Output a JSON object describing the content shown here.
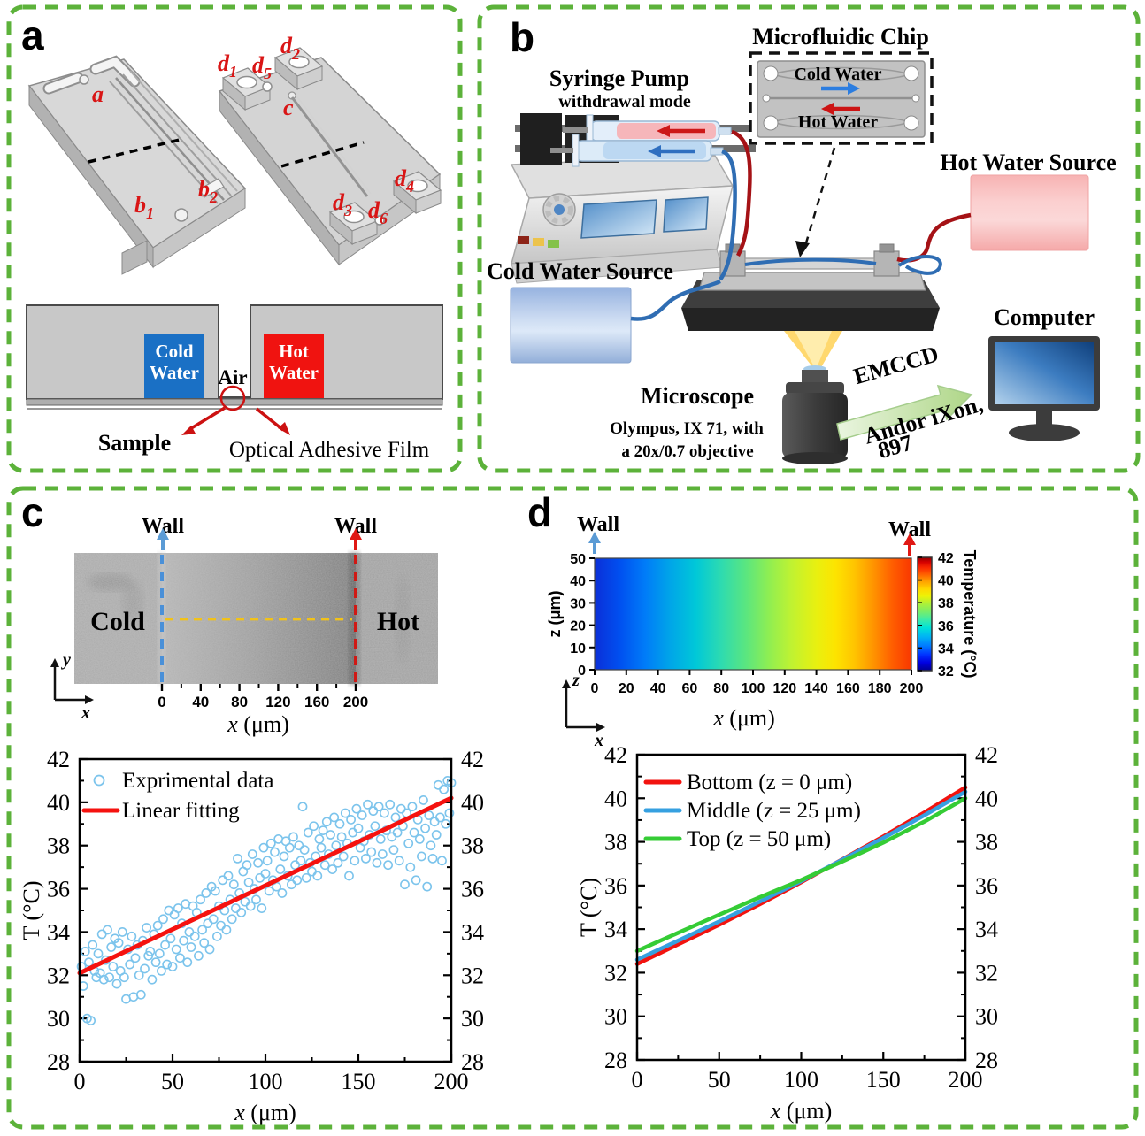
{
  "colors": {
    "green_border": "#5cb23a",
    "cold_blue": "#1a70c5",
    "hot_red": "#f01310",
    "label_red": "#d91515",
    "wall_blue": "#5b9bd5",
    "wall_red": "#e01814",
    "yellow_dash": "#f2c218",
    "scatter_marker": "#7cc4ec",
    "fit_line": "#f5120f",
    "tube_red": "#a51216",
    "tube_blue": "#2f6db3"
  },
  "panels": {
    "a": {
      "letter": "a",
      "chip_labels": [
        {
          "t": "a",
          "s": ""
        },
        {
          "t": "b",
          "s": "1"
        },
        {
          "t": "b",
          "s": "2"
        },
        {
          "t": "d",
          "s": "1"
        },
        {
          "t": "d",
          "s": "5"
        },
        {
          "t": "d",
          "s": "2"
        },
        {
          "t": "c",
          "s": ""
        },
        {
          "t": "d",
          "s": "3"
        },
        {
          "t": "d",
          "s": "6"
        },
        {
          "t": "d",
          "s": "4"
        }
      ],
      "cross_section": {
        "cold_line1": "Cold",
        "cold_line2": "Water",
        "hot_line1": "Hot",
        "hot_line2": "Water",
        "air": "Air",
        "sample": "Sample",
        "film": "Optical Adhesive Film"
      }
    },
    "b": {
      "letter": "b",
      "syringe_pump_title": "Syringe Pump",
      "syringe_pump_sub": "withdrawal mode",
      "chip_title": "Microfluidic Chip",
      "chip_cold": "Cold Water",
      "chip_hot": "Hot Water",
      "hot_source": "Hot Water Source",
      "cold_source": "Cold Water Source",
      "microscope_title": "Microscope",
      "microscope_line1": "Olympus, IX 71, with",
      "microscope_line2": "a 20x/0.7 objective",
      "emccd": "EMCCD",
      "emccd_line1": "Andor iXon,",
      "emccd_line2": "897",
      "computer": "Computer"
    },
    "c": {
      "letter": "c",
      "wall_left": "Wall",
      "wall_right": "Wall",
      "cold": "Cold",
      "hot": "Hot",
      "img_xticks": [
        0,
        40,
        80,
        120,
        160,
        200
      ],
      "img_xminor_step": 20,
      "img_xlabel": "x (μm)",
      "axis_icon": {
        "x": "x",
        "y": "y"
      }
    },
    "d": {
      "letter": "d",
      "wall_left": "Wall",
      "wall_right": "Wall",
      "axis_icon": {
        "x": "x",
        "z": "z"
      }
    }
  },
  "chart_data": [
    {
      "id": "c-scatter",
      "type": "scatter",
      "xlabel": "x (μm)",
      "ylabel": "T (°C)",
      "xlim": [
        0,
        200
      ],
      "ylim": [
        28,
        42
      ],
      "xticks": [
        0,
        50,
        100,
        150,
        200
      ],
      "xminor": 25,
      "yticks": [
        28,
        30,
        32,
        34,
        36,
        38,
        40,
        42
      ],
      "yminor": 1,
      "legend": [
        {
          "label": "Exprimental data",
          "kind": "marker",
          "color": "#7cc4ec"
        },
        {
          "label": "Linear fitting",
          "kind": "line",
          "color": "#f5120f"
        }
      ],
      "marker_color": "#7cc4ec",
      "fit": {
        "x0": 0,
        "y0": 32.1,
        "x1": 200,
        "y1": 40.2,
        "color": "#f5120f"
      },
      "points": [
        [
          1,
          32.4
        ],
        [
          2,
          31.5
        ],
        [
          3,
          33.1
        ],
        [
          4,
          30.0
        ],
        [
          5,
          32.6
        ],
        [
          6,
          29.9
        ],
        [
          7,
          33.4
        ],
        [
          8,
          32.2
        ],
        [
          9,
          31.9
        ],
        [
          10,
          33.0
        ],
        [
          11,
          32.1
        ],
        [
          12,
          33.9
        ],
        [
          13,
          31.8
        ],
        [
          14,
          32.7
        ],
        [
          15,
          34.1
        ],
        [
          16,
          31.9
        ],
        [
          17,
          33.3
        ],
        [
          18,
          32.4
        ],
        [
          19,
          33.7
        ],
        [
          20,
          31.6
        ],
        [
          21,
          33.5
        ],
        [
          22,
          32.2
        ],
        [
          23,
          34.0
        ],
        [
          24,
          31.9
        ],
        [
          25,
          30.9
        ],
        [
          26,
          33.2
        ],
        [
          27,
          32.5
        ],
        [
          28,
          33.8
        ],
        [
          29,
          31.0
        ],
        [
          30,
          32.8
        ],
        [
          31,
          33.4
        ],
        [
          32,
          32.0
        ],
        [
          33,
          31.1
        ],
        [
          34,
          33.6
        ],
        [
          35,
          32.3
        ],
        [
          36,
          34.2
        ],
        [
          37,
          32.9
        ],
        [
          38,
          33.1
        ],
        [
          39,
          31.8
        ],
        [
          40,
          33.9
        ],
        [
          41,
          32.6
        ],
        [
          42,
          34.3
        ],
        [
          43,
          33.0
        ],
        [
          44,
          32.2
        ],
        [
          45,
          34.6
        ],
        [
          46,
          33.4
        ],
        [
          47,
          32.5
        ],
        [
          48,
          35.0
        ],
        [
          49,
          33.7
        ],
        [
          50,
          32.4
        ],
        [
          51,
          34.8
        ],
        [
          52,
          33.2
        ],
        [
          53,
          35.1
        ],
        [
          54,
          32.8
        ],
        [
          55,
          34.4
        ],
        [
          56,
          33.6
        ],
        [
          57,
          35.3
        ],
        [
          58,
          32.6
        ],
        [
          59,
          34.0
        ],
        [
          60,
          33.3
        ],
        [
          61,
          35.2
        ],
        [
          62,
          33.8
        ],
        [
          63,
          34.9
        ],
        [
          64,
          32.9
        ],
        [
          65,
          35.5
        ],
        [
          66,
          34.1
        ],
        [
          67,
          33.5
        ],
        [
          68,
          35.8
        ],
        [
          69,
          34.4
        ],
        [
          70,
          33.2
        ],
        [
          71,
          36.1
        ],
        [
          72,
          34.6
        ],
        [
          73,
          35.9
        ],
        [
          74,
          33.8
        ],
        [
          75,
          35.2
        ],
        [
          76,
          34.3
        ],
        [
          77,
          36.4
        ],
        [
          78,
          35.0
        ],
        [
          79,
          34.1
        ],
        [
          80,
          36.6
        ],
        [
          81,
          35.5
        ],
        [
          82,
          34.6
        ],
        [
          83,
          36.2
        ],
        [
          84,
          35.1
        ],
        [
          85,
          37.4
        ],
        [
          86,
          35.8
        ],
        [
          87,
          34.9
        ],
        [
          88,
          36.8
        ],
        [
          89,
          35.4
        ],
        [
          90,
          37.1
        ],
        [
          91,
          36.3
        ],
        [
          92,
          35.2
        ],
        [
          93,
          37.6
        ],
        [
          94,
          36.0
        ],
        [
          95,
          35.5
        ],
        [
          96,
          37.2
        ],
        [
          97,
          36.5
        ],
        [
          98,
          35.1
        ],
        [
          99,
          37.9
        ],
        [
          100,
          36.7
        ],
        [
          101,
          37.3
        ],
        [
          102,
          35.9
        ],
        [
          103,
          38.1
        ],
        [
          104,
          36.4
        ],
        [
          105,
          37.7
        ],
        [
          106,
          36.1
        ],
        [
          107,
          38.3
        ],
        [
          108,
          36.9
        ],
        [
          109,
          35.8
        ],
        [
          110,
          37.5
        ],
        [
          111,
          38.2
        ],
        [
          112,
          36.6
        ],
        [
          113,
          37.9
        ],
        [
          114,
          36.2
        ],
        [
          115,
          38.4
        ],
        [
          116,
          37.1
        ],
        [
          117,
          36.4
        ],
        [
          118,
          38.0
        ],
        [
          119,
          37.3
        ],
        [
          120,
          39.8
        ],
        [
          121,
          37.8
        ],
        [
          122,
          36.5
        ],
        [
          123,
          38.6
        ],
        [
          124,
          37.2
        ],
        [
          125,
          36.8
        ],
        [
          126,
          38.9
        ],
        [
          127,
          37.5
        ],
        [
          128,
          36.6
        ],
        [
          129,
          38.3
        ],
        [
          130,
          37.9
        ],
        [
          131,
          38.7
        ],
        [
          132,
          37.1
        ],
        [
          133,
          39.1
        ],
        [
          134,
          37.6
        ],
        [
          135,
          38.5
        ],
        [
          136,
          36.9
        ],
        [
          137,
          39.3
        ],
        [
          138,
          38.0
        ],
        [
          139,
          37.2
        ],
        [
          140,
          39.0
        ],
        [
          141,
          38.4
        ],
        [
          142,
          37.5
        ],
        [
          143,
          39.5
        ],
        [
          144,
          38.1
        ],
        [
          145,
          36.6
        ],
        [
          146,
          39.2
        ],
        [
          147,
          38.6
        ],
        [
          148,
          37.3
        ],
        [
          149,
          39.7
        ],
        [
          150,
          38.8
        ],
        [
          151,
          37.9
        ],
        [
          152,
          39.4
        ],
        [
          153,
          38.2
        ],
        [
          154,
          37.4
        ],
        [
          155,
          39.9
        ],
        [
          156,
          38.5
        ],
        [
          157,
          37.7
        ],
        [
          158,
          39.6
        ],
        [
          159,
          38.9
        ],
        [
          160,
          37.2
        ],
        [
          161,
          39.8
        ],
        [
          162,
          38.3
        ],
        [
          163,
          37.6
        ],
        [
          164,
          39.5
        ],
        [
          165,
          38.7
        ],
        [
          166,
          37.1
        ],
        [
          167,
          39.9
        ],
        [
          168,
          38.4
        ],
        [
          169,
          37.8
        ],
        [
          170,
          39.3
        ],
        [
          171,
          38.6
        ],
        [
          172,
          37.3
        ],
        [
          173,
          39.7
        ],
        [
          174,
          38.9
        ],
        [
          175,
          36.2
        ],
        [
          176,
          39.5
        ],
        [
          177,
          38.1
        ],
        [
          178,
          37.0
        ],
        [
          179,
          39.8
        ],
        [
          180,
          38.6
        ],
        [
          181,
          36.4
        ],
        [
          182,
          39.2
        ],
        [
          183,
          38.3
        ],
        [
          184,
          37.5
        ],
        [
          185,
          40.1
        ],
        [
          186,
          38.8
        ],
        [
          187,
          36.1
        ],
        [
          188,
          39.4
        ],
        [
          189,
          38.0
        ],
        [
          190,
          37.4
        ],
        [
          191,
          39.1
        ],
        [
          192,
          38.5
        ],
        [
          193,
          40.8
        ],
        [
          194,
          39.3
        ],
        [
          195,
          37.3
        ],
        [
          196,
          40.6
        ],
        [
          197,
          39.0
        ],
        [
          198,
          41.0
        ],
        [
          199,
          39.5
        ],
        [
          200,
          40.9
        ]
      ]
    },
    {
      "id": "d-heatmap",
      "type": "heatmap",
      "xlabel": "x (μm)",
      "zlabel": "z (μm)",
      "colorbar_label": "Temperature (°C)",
      "xlim": [
        0,
        200
      ],
      "zlim": [
        0,
        50
      ],
      "xticks": [
        0,
        20,
        40,
        60,
        80,
        100,
        120,
        140,
        160,
        180,
        200
      ],
      "zticks": [
        0,
        10,
        20,
        30,
        40,
        50
      ],
      "t_left": 32.3,
      "t_right": 40.5,
      "colormap": "jet",
      "colorbar_range": [
        32,
        42
      ],
      "colorbar_ticks": [
        32,
        34,
        36,
        38,
        40,
        42
      ],
      "gradient_stops": [
        {
          "p": 0,
          "c": "#0b2fd8"
        },
        {
          "p": 0.08,
          "c": "#0050f0"
        },
        {
          "p": 0.16,
          "c": "#007cf8"
        },
        {
          "p": 0.24,
          "c": "#00a6e8"
        },
        {
          "p": 0.32,
          "c": "#00c8d8"
        },
        {
          "p": 0.4,
          "c": "#2edbb0"
        },
        {
          "p": 0.48,
          "c": "#5ce67e"
        },
        {
          "p": 0.55,
          "c": "#8fee52"
        },
        {
          "p": 0.62,
          "c": "#bff232"
        },
        {
          "p": 0.7,
          "c": "#e8f010"
        },
        {
          "p": 0.76,
          "c": "#fde400"
        },
        {
          "p": 0.82,
          "c": "#ffc400"
        },
        {
          "p": 0.88,
          "c": "#ff9400"
        },
        {
          "p": 0.94,
          "c": "#ff5e00"
        },
        {
          "p": 1,
          "c": "#f93700"
        }
      ],
      "colorbar_stops": [
        {
          "p": 0,
          "c": "#00008e"
        },
        {
          "p": 0.07,
          "c": "#0000e0"
        },
        {
          "p": 0.14,
          "c": "#0032ff"
        },
        {
          "p": 0.22,
          "c": "#007cff"
        },
        {
          "p": 0.3,
          "c": "#00b4f4"
        },
        {
          "p": 0.38,
          "c": "#00e2d8"
        },
        {
          "p": 0.46,
          "c": "#44eca0"
        },
        {
          "p": 0.53,
          "c": "#7fee62"
        },
        {
          "p": 0.6,
          "c": "#b5f132"
        },
        {
          "p": 0.66,
          "c": "#eef206"
        },
        {
          "p": 0.72,
          "c": "#ffd800"
        },
        {
          "p": 0.79,
          "c": "#ffa000"
        },
        {
          "p": 0.85,
          "c": "#ff6000"
        },
        {
          "p": 0.91,
          "c": "#fa2800"
        },
        {
          "p": 0.96,
          "c": "#d40000"
        },
        {
          "p": 1,
          "c": "#8e0000"
        }
      ]
    },
    {
      "id": "d-lines",
      "type": "line",
      "xlabel": "x (μm)",
      "ylabel": "T (°C)",
      "xlim": [
        0,
        200
      ],
      "ylim": [
        28,
        42
      ],
      "xticks": [
        0,
        50,
        100,
        150,
        200
      ],
      "xminor": 25,
      "yticks": [
        28,
        30,
        32,
        34,
        36,
        38,
        40,
        42
      ],
      "yminor": 1,
      "x": [
        0,
        25,
        50,
        75,
        100,
        125,
        150,
        175,
        200
      ],
      "series": [
        {
          "name": "Bottom (z = 0 μm)",
          "color": "#f2130f",
          "y": [
            32.4,
            33.3,
            34.2,
            35.15,
            36.15,
            37.2,
            38.25,
            39.35,
            40.5
          ]
        },
        {
          "name": "Middle (z = 25 μm)",
          "color": "#36a0e0",
          "y": [
            32.6,
            33.47,
            34.35,
            35.27,
            36.2,
            37.18,
            38.18,
            39.22,
            40.3
          ]
        },
        {
          "name": "Top (z = 50 μm)",
          "color": "#35cc35",
          "y": [
            33.0,
            33.83,
            34.66,
            35.47,
            36.25,
            37.1,
            37.97,
            38.93,
            40.0
          ]
        }
      ]
    }
  ]
}
